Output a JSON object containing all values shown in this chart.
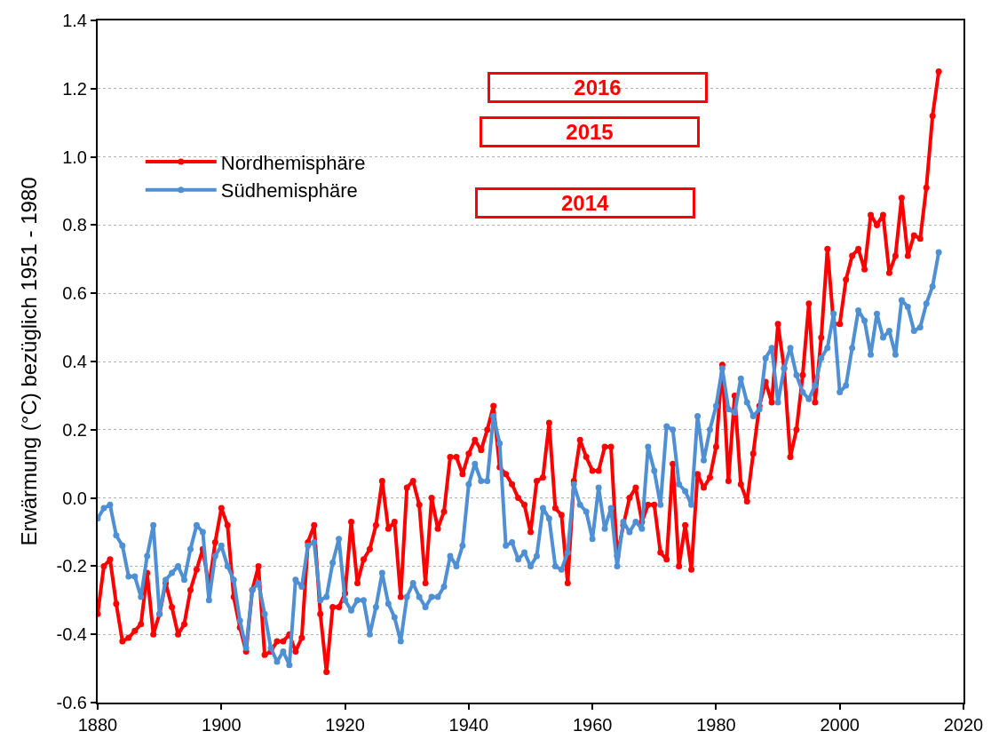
{
  "chart_data": {
    "type": "line",
    "ylabel": "Erwärmung (°C) bezüglich 1951 - 1980",
    "x": [
      1880,
      1881,
      1882,
      1883,
      1884,
      1885,
      1886,
      1887,
      1888,
      1889,
      1890,
      1891,
      1892,
      1893,
      1894,
      1895,
      1896,
      1897,
      1898,
      1899,
      1900,
      1901,
      1902,
      1903,
      1904,
      1905,
      1906,
      1907,
      1908,
      1909,
      1910,
      1911,
      1912,
      1913,
      1914,
      1915,
      1916,
      1917,
      1918,
      1919,
      1920,
      1921,
      1922,
      1923,
      1924,
      1925,
      1926,
      1927,
      1928,
      1929,
      1930,
      1931,
      1932,
      1933,
      1934,
      1935,
      1936,
      1937,
      1938,
      1939,
      1940,
      1941,
      1942,
      1943,
      1944,
      1945,
      1946,
      1947,
      1948,
      1949,
      1950,
      1951,
      1952,
      1953,
      1954,
      1955,
      1956,
      1957,
      1958,
      1959,
      1960,
      1961,
      1962,
      1963,
      1964,
      1965,
      1966,
      1967,
      1968,
      1969,
      1970,
      1971,
      1972,
      1973,
      1974,
      1975,
      1976,
      1977,
      1978,
      1979,
      1980,
      1981,
      1982,
      1983,
      1984,
      1985,
      1986,
      1987,
      1988,
      1989,
      1990,
      1991,
      1992,
      1993,
      1994,
      1995,
      1996,
      1997,
      1998,
      1999,
      2000,
      2001,
      2002,
      2003,
      2004,
      2005,
      2006,
      2007,
      2008,
      2009,
      2010,
      2011,
      2012,
      2013,
      2014,
      2015,
      2016
    ],
    "series": [
      {
        "name": "Nordhemisphäre",
        "color": "#ff0000",
        "values": [
          -0.34,
          -0.2,
          -0.18,
          -0.31,
          -0.42,
          -0.41,
          -0.39,
          -0.37,
          -0.22,
          -0.4,
          -0.34,
          -0.25,
          -0.32,
          -0.4,
          -0.37,
          -0.27,
          -0.21,
          -0.15,
          -0.26,
          -0.13,
          -0.03,
          -0.08,
          -0.29,
          -0.38,
          -0.45,
          -0.27,
          -0.2,
          -0.46,
          -0.45,
          -0.42,
          -0.42,
          -0.4,
          -0.45,
          -0.41,
          -0.13,
          -0.08,
          -0.34,
          -0.51,
          -0.32,
          -0.32,
          -0.28,
          -0.07,
          -0.25,
          -0.18,
          -0.15,
          -0.08,
          0.05,
          -0.09,
          -0.07,
          -0.29,
          0.03,
          0.05,
          -0.02,
          -0.25,
          0.0,
          -0.09,
          -0.04,
          0.12,
          0.12,
          0.07,
          0.13,
          0.17,
          0.14,
          0.2,
          0.27,
          0.09,
          0.07,
          0.04,
          0.0,
          -0.02,
          -0.1,
          0.05,
          0.06,
          0.22,
          -0.03,
          -0.05,
          -0.25,
          0.05,
          0.17,
          0.12,
          0.08,
          0.08,
          0.15,
          0.15,
          -0.17,
          -0.08,
          0.0,
          0.03,
          -0.07,
          -0.02,
          -0.02,
          -0.16,
          -0.18,
          0.1,
          -0.2,
          -0.08,
          -0.21,
          0.07,
          0.03,
          0.06,
          0.15,
          0.39,
          0.05,
          0.3,
          0.04,
          -0.01,
          0.13,
          0.27,
          0.34,
          0.28,
          0.51,
          0.38,
          0.12,
          0.2,
          0.36,
          0.57,
          0.28,
          0.47,
          0.73,
          0.51,
          0.51,
          0.64,
          0.71,
          0.73,
          0.67,
          0.83,
          0.8,
          0.83,
          0.66,
          0.71,
          0.88,
          0.71,
          0.77,
          0.76,
          0.91,
          1.12,
          1.25
        ]
      },
      {
        "name": "Südhemisphäre",
        "color": "#4f8fd4",
        "values": [
          -0.06,
          -0.03,
          -0.02,
          -0.11,
          -0.14,
          -0.23,
          -0.23,
          -0.29,
          -0.17,
          -0.08,
          -0.34,
          -0.24,
          -0.22,
          -0.2,
          -0.24,
          -0.15,
          -0.08,
          -0.1,
          -0.3,
          -0.17,
          -0.14,
          -0.2,
          -0.24,
          -0.36,
          -0.44,
          -0.27,
          -0.25,
          -0.34,
          -0.44,
          -0.48,
          -0.45,
          -0.49,
          -0.24,
          -0.26,
          -0.14,
          -0.13,
          -0.3,
          -0.29,
          -0.19,
          -0.12,
          -0.3,
          -0.33,
          -0.3,
          -0.3,
          -0.4,
          -0.32,
          -0.22,
          -0.31,
          -0.35,
          -0.42,
          -0.29,
          -0.25,
          -0.29,
          -0.32,
          -0.29,
          -0.29,
          -0.26,
          -0.17,
          -0.2,
          -0.14,
          0.04,
          0.1,
          0.05,
          0.05,
          0.24,
          0.16,
          -0.14,
          -0.13,
          -0.18,
          -0.16,
          -0.2,
          -0.17,
          -0.03,
          -0.06,
          -0.2,
          -0.21,
          -0.16,
          0.04,
          -0.02,
          -0.04,
          -0.12,
          0.03,
          -0.09,
          -0.03,
          -0.2,
          -0.07,
          -0.1,
          -0.07,
          -0.09,
          0.15,
          0.08,
          -0.02,
          0.21,
          0.2,
          0.04,
          0.02,
          -0.02,
          0.24,
          0.11,
          0.2,
          0.27,
          0.38,
          0.26,
          0.25,
          0.35,
          0.28,
          0.24,
          0.26,
          0.41,
          0.44,
          0.28,
          0.38,
          0.44,
          0.36,
          0.31,
          0.29,
          0.33,
          0.41,
          0.44,
          0.54,
          0.31,
          0.33,
          0.44,
          0.55,
          0.52,
          0.42,
          0.54,
          0.47,
          0.49,
          0.42,
          0.58,
          0.56,
          0.49,
          0.5,
          0.57,
          0.62,
          0.72
        ]
      }
    ],
    "xlim": [
      1880,
      2020
    ],
    "xticks": [
      1880,
      1900,
      1920,
      1940,
      1960,
      1980,
      2000,
      2020
    ],
    "ylim": [
      -0.6,
      1.4
    ],
    "yticks": [
      -0.6,
      -0.4,
      -0.2,
      {
        "value": 0,
        "label": "0.0"
      },
      0.2,
      0.4,
      0.6,
      0.8,
      {
        "value": 1,
        "label": "1.0"
      },
      1.2,
      1.4
    ],
    "grid": "y",
    "legend": "top left",
    "marker": "circle",
    "line_style": "solid",
    "annotations": [
      "2016",
      "2015",
      "2014"
    ]
  }
}
